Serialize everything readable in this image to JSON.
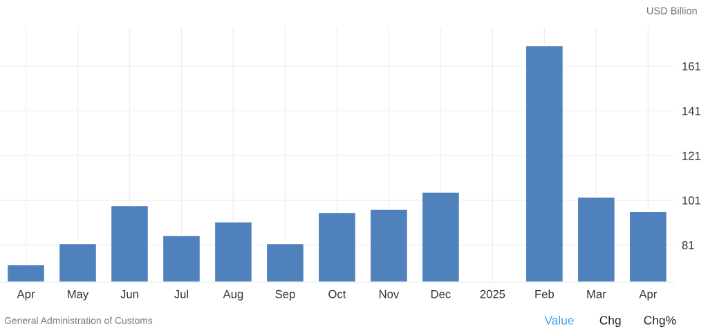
{
  "chart_data": {
    "type": "bar",
    "categories": [
      "Apr",
      "May",
      "Jun",
      "Jul",
      "Aug",
      "Sep",
      "Oct",
      "Nov",
      "Dec",
      "2025",
      "Feb",
      "Mar",
      "Apr"
    ],
    "values": [
      72.1,
      81.6,
      98.6,
      85.2,
      91.3,
      81.6,
      95.5,
      96.9,
      104.6,
      null,
      170.1,
      102.4,
      95.9
    ],
    "color": "#4f81bd",
    "ylabel": "USD Billion",
    "ylim": [
      64.4,
      178.2
    ],
    "yticks": [
      81,
      101,
      121,
      141,
      161
    ],
    "grid": true,
    "annotations": [
      "General Administration of Customs",
      "Value",
      "Chg",
      "Chg%"
    ]
  }
}
